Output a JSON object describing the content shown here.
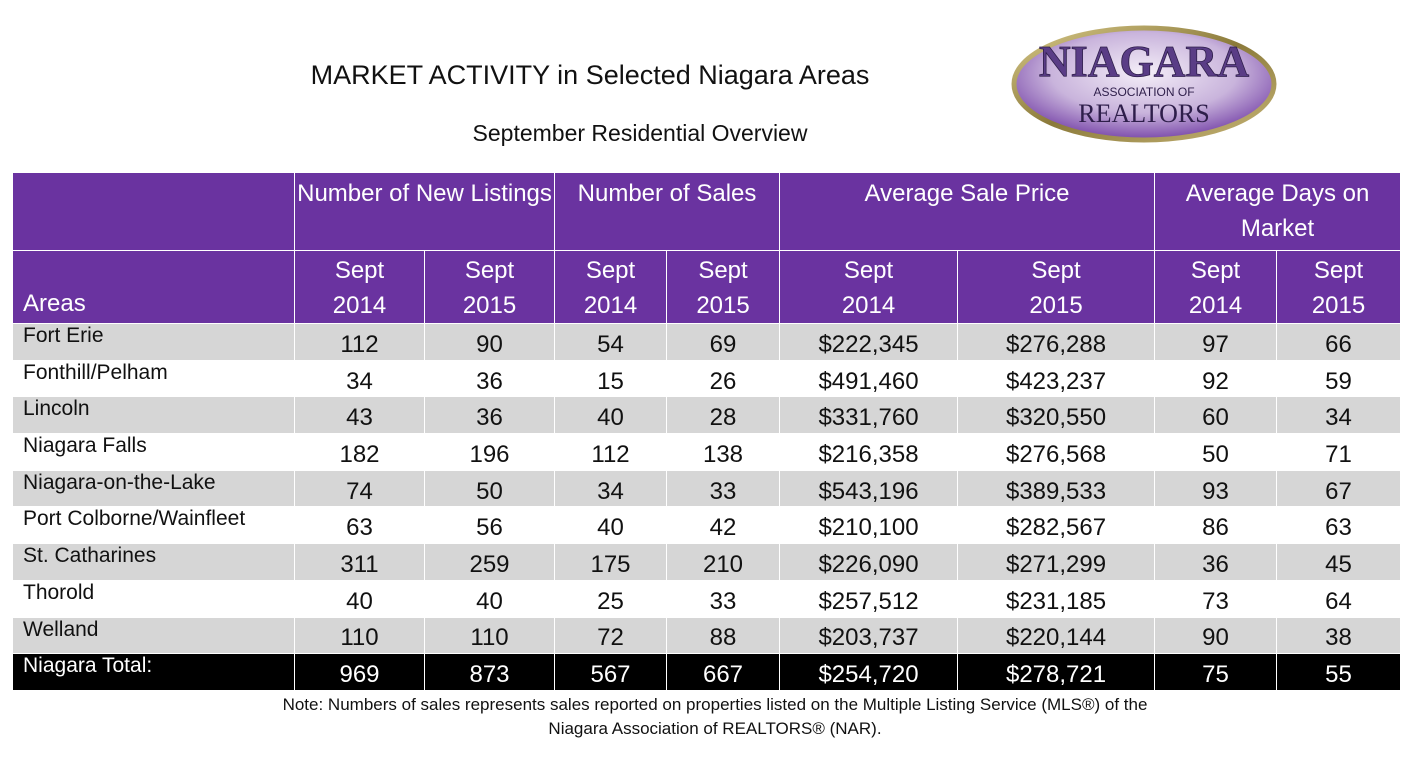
{
  "title": "MARKET ACTIVITY in Selected Niagara Areas",
  "subtitle": "September Residential Overview",
  "logo": {
    "top_text": "NIAGARA",
    "middle_text": "ASSOCIATION OF",
    "bottom_text": "REALTORS",
    "colors": {
      "oval": "#8b7a3a",
      "fill": "#6a33a0",
      "text": "#5a3d86"
    }
  },
  "table": {
    "group_headers": [
      "Number of New Listings",
      "Number of Sales",
      "Average Sale Price",
      "Average Days on Market"
    ],
    "areas_label": "Areas",
    "sub_headers": [
      [
        "Sept",
        "2014"
      ],
      [
        "Sept",
        "2015"
      ],
      [
        "Sept",
        "2014"
      ],
      [
        "Sept",
        "2015"
      ],
      [
        "Sept",
        "2014"
      ],
      [
        "Sept",
        "2015"
      ],
      [
        "Sept",
        "2014"
      ],
      [
        "Sept",
        "2015"
      ]
    ],
    "rows": [
      [
        "Fort Erie",
        "112",
        "90",
        "54",
        "69",
        "$222,345",
        "$276,288",
        "97",
        "66"
      ],
      [
        "Fonthill/Pelham",
        "34",
        "36",
        "15",
        "26",
        "$491,460",
        "$423,237",
        "92",
        "59"
      ],
      [
        "Lincoln",
        "43",
        "36",
        "40",
        "28",
        "$331,760",
        "$320,550",
        "60",
        "34"
      ],
      [
        "Niagara Falls",
        "182",
        "196",
        "112",
        "138",
        "$216,358",
        "$276,568",
        "50",
        "71"
      ],
      [
        "Niagara-on-the-Lake",
        "74",
        "50",
        "34",
        "33",
        "$543,196",
        "$389,533",
        "93",
        "67"
      ],
      [
        "Port Colborne/Wainfleet",
        "63",
        "56",
        "40",
        "42",
        "$210,100",
        "$282,567",
        "86",
        "63"
      ],
      [
        "St. Catharines",
        "311",
        "259",
        "175",
        "210",
        "$226,090",
        "$271,299",
        "36",
        "45"
      ],
      [
        "Thorold",
        "40",
        "40",
        "25",
        "33",
        "$257,512",
        "$231,185",
        "73",
        "64"
      ],
      [
        "Welland",
        "110",
        "110",
        "72",
        "88",
        "$203,737",
        "$220,144",
        "90",
        "38"
      ]
    ],
    "total": [
      "Niagara Total:",
      "969",
      "873",
      "567",
      "667",
      "$254,720",
      "$278,721",
      "75",
      "55"
    ],
    "colors": {
      "header": "#6a33a0",
      "stripe": "#d6d6d6",
      "total": "#000000"
    }
  },
  "note": {
    "line1": "Note: Numbers of sales represents sales reported on properties listed on the Multiple Listing Service (MLS®) of the",
    "line2": "Niagara Association of REALTORS® (NAR)."
  }
}
